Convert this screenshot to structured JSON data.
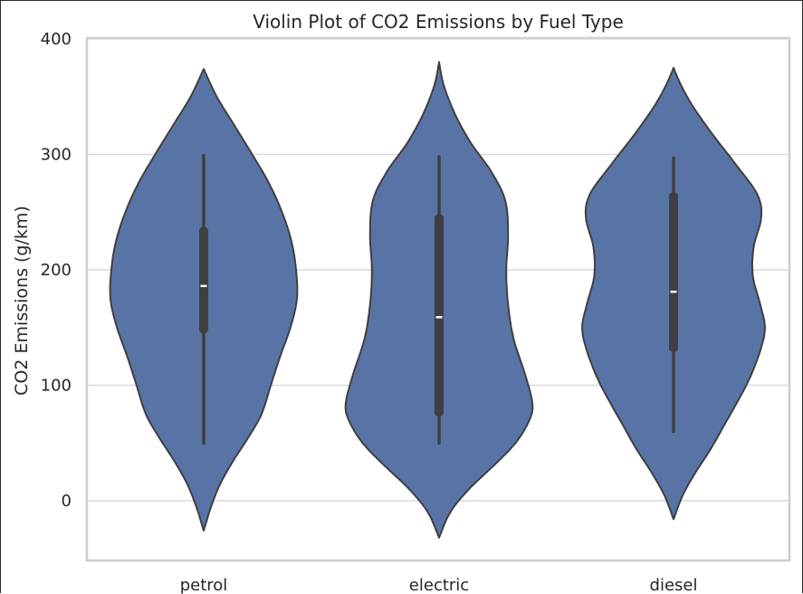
{
  "chart_data": {
    "type": "violin",
    "title": "Violin Plot of CO2 Emissions by Fuel Type",
    "xlabel": "",
    "ylabel": "CO2 Emissions (g/km)",
    "ylim": [
      -52,
      402
    ],
    "yticks": [
      "0",
      "100",
      "200",
      "300",
      "400"
    ],
    "ytick_values": [
      0,
      100,
      200,
      300,
      400
    ],
    "grid": true,
    "colors": {
      "violin": "#5874a6",
      "outline": "#3f3f3f",
      "box": "#3f3f3f",
      "median": "#ffffff",
      "grid": "#d9d9d9",
      "spine": "#cccccc"
    },
    "categories": [
      "petrol",
      "electric",
      "diesel"
    ],
    "violins": [
      {
        "category": "petrol",
        "min": 50,
        "q1": 145,
        "median": 186,
        "q3": 237,
        "max": 299,
        "extent": [
          -26,
          374
        ],
        "density_profile": [
          [
            -26,
            0.0
          ],
          [
            -5,
            0.08
          ],
          [
            15,
            0.18
          ],
          [
            35,
            0.32
          ],
          [
            55,
            0.48
          ],
          [
            75,
            0.62
          ],
          [
            100,
            0.72
          ],
          [
            125,
            0.82
          ],
          [
            150,
            0.93
          ],
          [
            175,
            1.0
          ],
          [
            200,
            0.99
          ],
          [
            225,
            0.94
          ],
          [
            250,
            0.84
          ],
          [
            275,
            0.7
          ],
          [
            300,
            0.52
          ],
          [
            325,
            0.33
          ],
          [
            350,
            0.14
          ],
          [
            374,
            0.0
          ]
        ]
      },
      {
        "category": "electric",
        "min": 50,
        "q1": 73,
        "median": 159,
        "q3": 248,
        "max": 298,
        "extent": [
          -32,
          380
        ],
        "density_profile": [
          [
            -32,
            0.0
          ],
          [
            -10,
            0.12
          ],
          [
            10,
            0.32
          ],
          [
            30,
            0.58
          ],
          [
            50,
            0.82
          ],
          [
            70,
            0.97
          ],
          [
            85,
            1.0
          ],
          [
            110,
            0.92
          ],
          [
            140,
            0.8
          ],
          [
            170,
            0.74
          ],
          [
            200,
            0.72
          ],
          [
            230,
            0.74
          ],
          [
            260,
            0.71
          ],
          [
            285,
            0.56
          ],
          [
            310,
            0.34
          ],
          [
            335,
            0.17
          ],
          [
            360,
            0.05
          ],
          [
            380,
            0.0
          ]
        ]
      },
      {
        "category": "diesel",
        "min": 60,
        "q1": 129,
        "median": 181,
        "q3": 267,
        "max": 297,
        "extent": [
          -16,
          375
        ],
        "density_profile": [
          [
            -16,
            0.0
          ],
          [
            5,
            0.1
          ],
          [
            25,
            0.24
          ],
          [
            45,
            0.4
          ],
          [
            65,
            0.54
          ],
          [
            85,
            0.68
          ],
          [
            105,
            0.81
          ],
          [
            130,
            0.93
          ],
          [
            150,
            0.98
          ],
          [
            170,
            0.93
          ],
          [
            195,
            0.85
          ],
          [
            220,
            0.86
          ],
          [
            245,
            0.94
          ],
          [
            265,
            0.9
          ],
          [
            290,
            0.68
          ],
          [
            315,
            0.44
          ],
          [
            340,
            0.22
          ],
          [
            360,
            0.08
          ],
          [
            375,
            0.0
          ]
        ]
      }
    ]
  }
}
